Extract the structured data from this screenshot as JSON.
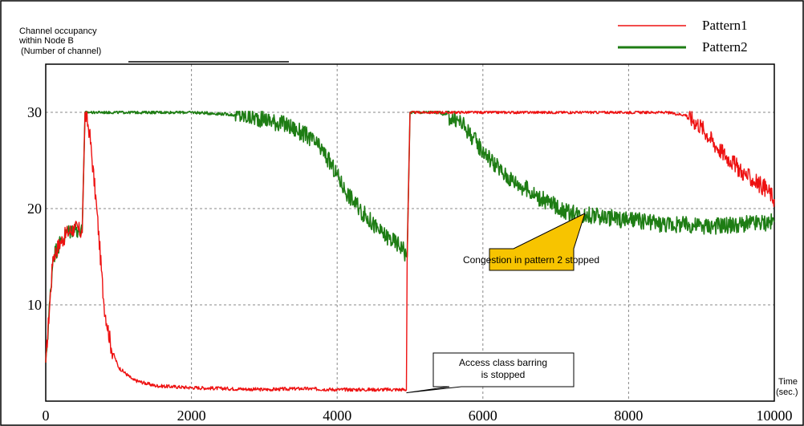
{
  "chart_data": {
    "type": "line",
    "ylabel_lines": [
      "Channel occupancy",
      "within Node B",
      "(Number of channel)"
    ],
    "xlabel_lines": [
      "Time",
      "(sec.)"
    ],
    "xlim": [
      0,
      10000
    ],
    "ylim": [
      0,
      35
    ],
    "x_ticks": [
      0,
      2000,
      4000,
      6000,
      8000,
      10000
    ],
    "x_tick_labels": [
      "0",
      "2000",
      "4000",
      "6000",
      "8000",
      "10000"
    ],
    "y_ticks": [
      10,
      20,
      30
    ],
    "y_tick_labels": [
      "10",
      "20",
      "30"
    ],
    "grid": true,
    "legend_position": "top-right",
    "series": [
      {
        "name": "Pattern1",
        "color": "#ee1111",
        "x": [
          0,
          100,
          200,
          300,
          400,
          500,
          540,
          600,
          700,
          800,
          900,
          1000,
          1200,
          1500,
          2000,
          2500,
          3000,
          3500,
          4000,
          4500,
          4950,
          4960,
          5000,
          6000,
          7000,
          8000,
          8500,
          8800,
          9000,
          9200,
          9400,
          9600,
          9800,
          9900,
          10000
        ],
        "y": [
          4,
          15,
          16.5,
          17.5,
          18,
          17.5,
          30,
          28,
          20,
          10,
          5.5,
          3.5,
          2.2,
          1.6,
          1.4,
          1.3,
          1.2,
          1.3,
          1.2,
          1.2,
          1.2,
          14.5,
          30,
          30,
          30,
          30,
          30,
          29.7,
          28.5,
          26.5,
          25,
          23.5,
          22.5,
          22,
          21
        ]
      },
      {
        "name": "Pattern2",
        "color": "#1e7d14",
        "x": [
          0,
          100,
          200,
          300,
          400,
          500,
          540,
          600,
          1000,
          1500,
          2000,
          2500,
          3000,
          3300,
          3600,
          3800,
          4000,
          4100,
          4300,
          4600,
          4900,
          4950,
          4960,
          5000,
          5400,
          5700,
          6000,
          6300,
          6800,
          7200,
          7500,
          8000,
          8500,
          9000,
          9500,
          10000
        ],
        "y": [
          4,
          15,
          16.5,
          17.5,
          18,
          17.5,
          30,
          30,
          30,
          30,
          30,
          29.8,
          29.3,
          28.7,
          27.5,
          26,
          23.5,
          22,
          20,
          17.5,
          16,
          15,
          15,
          30,
          30,
          29,
          26,
          23.5,
          21,
          19.5,
          19.3,
          18.8,
          18.4,
          18.2,
          18.3,
          18.6
        ]
      }
    ],
    "annotations": [
      {
        "text": "Congestion in pattern 2 stopped",
        "x": 7400,
        "y": 19.5,
        "style": "yellow-callout"
      },
      {
        "lines": [
          "Access class barring",
          "is stopped"
        ],
        "x": 4950,
        "y": 1.2,
        "style": "white-callout"
      }
    ]
  },
  "colors": {
    "background": "#ffffff",
    "grid": "#888888",
    "callout_yellow": "#f7c400"
  }
}
